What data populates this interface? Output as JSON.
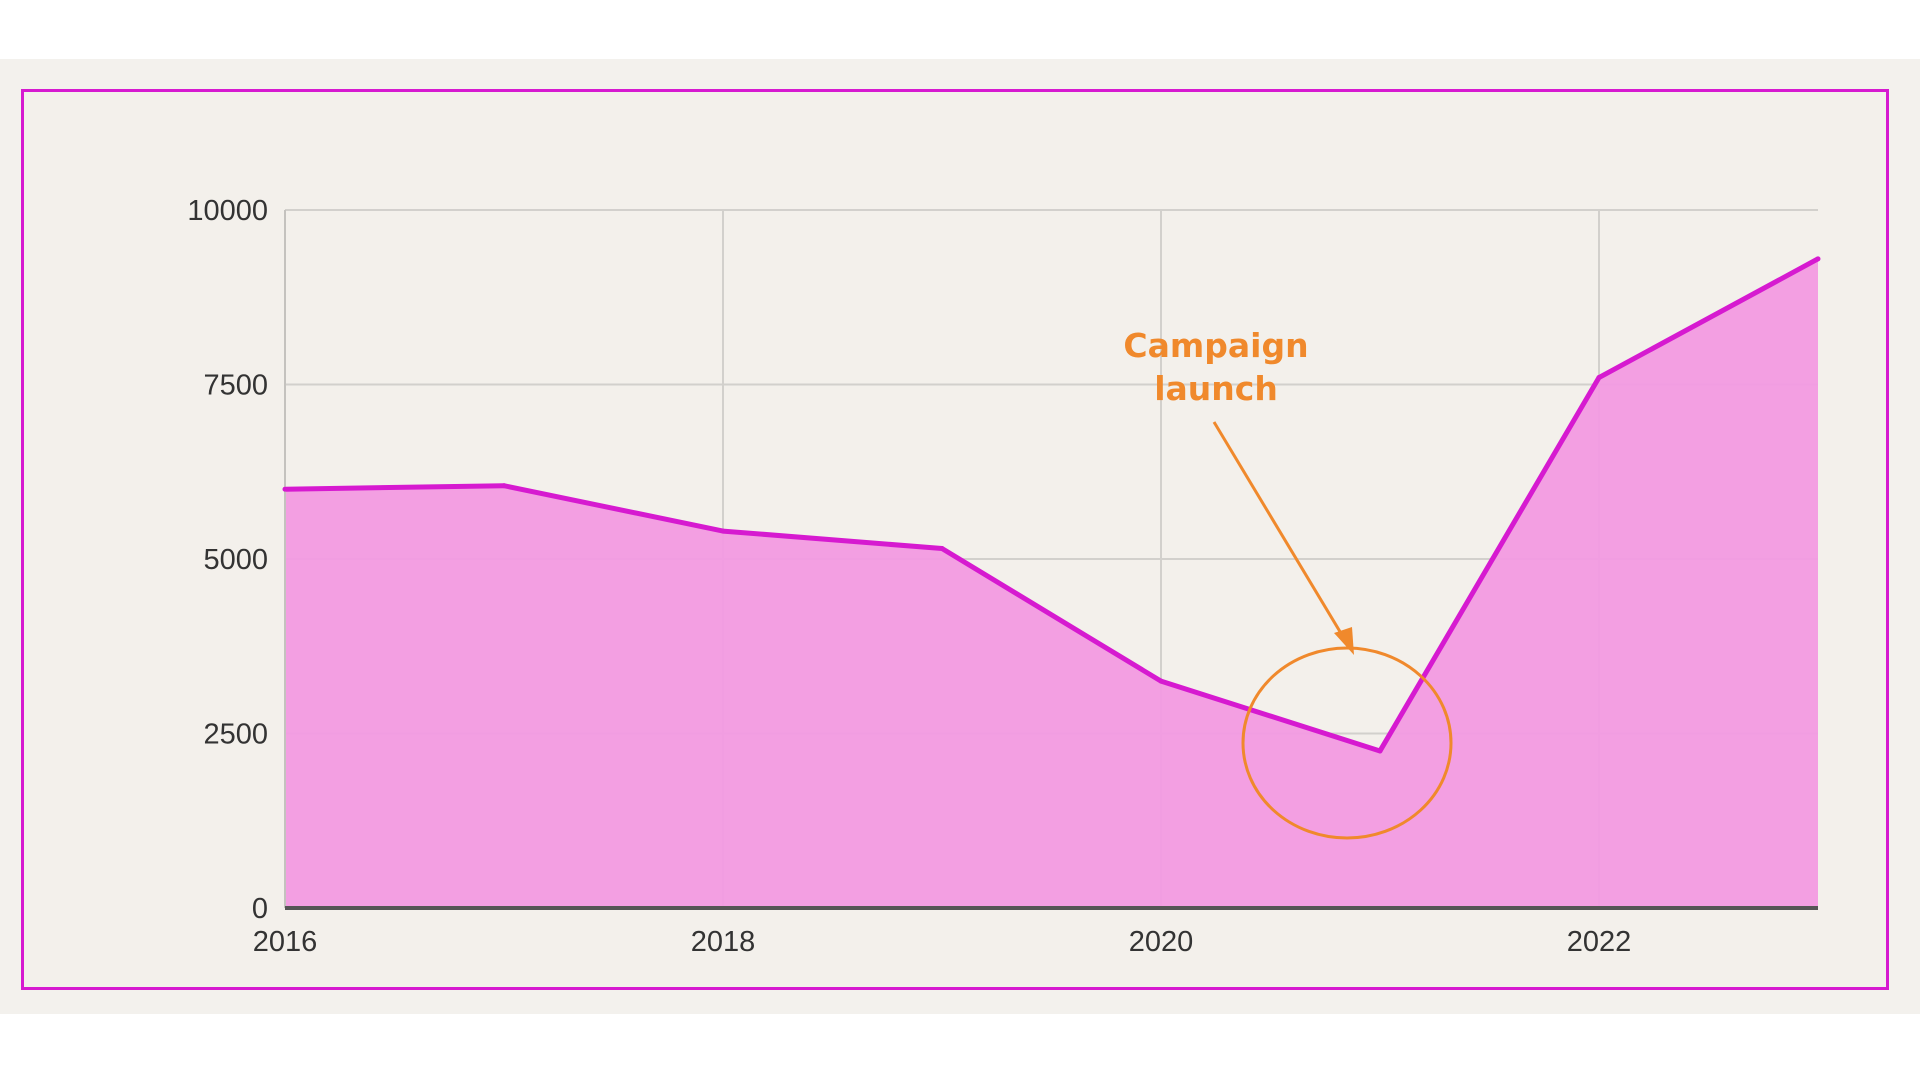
{
  "chart_data": {
    "type": "area",
    "title": "",
    "xlabel": "",
    "ylabel": "",
    "x": [
      2016,
      2017,
      2018,
      2019,
      2020,
      2021,
      2022,
      2023
    ],
    "series": [
      {
        "values": [
          6000,
          6050,
          5400,
          5150,
          3250,
          2250,
          7600,
          9300
        ],
        "color": "#d61ad0",
        "fill": "#f29ae2"
      }
    ],
    "xlim": [
      2016,
      2023
    ],
    "ylim": [
      0,
      10000
    ],
    "x_ticks": [
      "2016",
      "2018",
      "2020",
      "2022"
    ],
    "y_ticks": [
      "0",
      "2500",
      "5000",
      "7500",
      "10000"
    ],
    "grid": true,
    "legend": "none",
    "annotation": {
      "text_line1": "Campaign",
      "text_line2": "launch",
      "points_to_x": 2021,
      "points_to_y": 2250,
      "color": "#f0892c"
    }
  }
}
